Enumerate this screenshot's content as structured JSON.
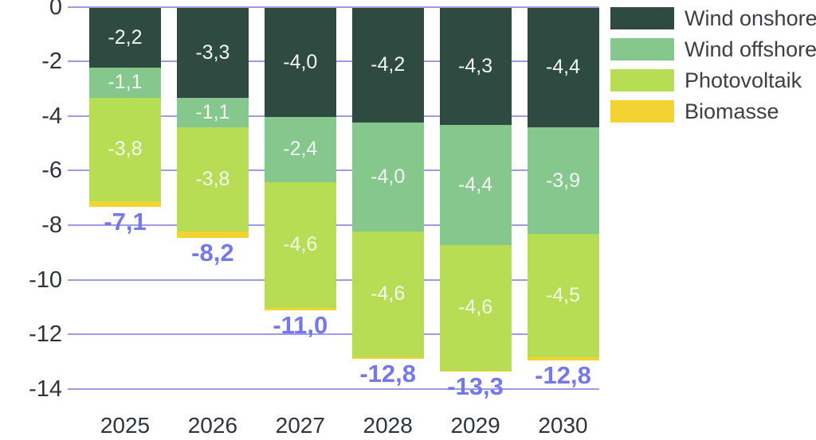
{
  "chart_data": {
    "type": "bar",
    "variant": "stacked-negative-columns",
    "title": "",
    "xlabel": "",
    "ylabel": "",
    "decimal_separator": ",",
    "categories": [
      "2025",
      "2026",
      "2027",
      "2028",
      "2029",
      "2030"
    ],
    "series": [
      {
        "name": "Wind onshore",
        "color": "#2E4A41",
        "values": [
          -2.2,
          -3.3,
          -4.0,
          -4.2,
          -4.3,
          -4.4
        ],
        "labels": [
          "-2,2",
          "-3,3",
          "-4,0",
          "-4,2",
          "-4,3",
          "-4,4"
        ]
      },
      {
        "name": "Wind offshore",
        "color": "#85C78D",
        "values": [
          -1.1,
          -1.1,
          -2.4,
          -4.0,
          -4.4,
          -3.9
        ],
        "labels": [
          "-1,1",
          "-1,1",
          "-2,4",
          "-4,0",
          "-4,4",
          "-3,9"
        ]
      },
      {
        "name": "Photovoltaik",
        "color": "#B7DD55",
        "values": [
          -3.8,
          -3.8,
          -4.6,
          -4.6,
          -4.6,
          -4.5
        ],
        "labels": [
          "-3,8",
          "-3,8",
          "-4,6",
          "-4,6",
          "-4,6",
          "-4,5"
        ]
      },
      {
        "name": "Biomasse",
        "color": "#F3D332",
        "values": [
          -0.2,
          -0.23,
          -0.1,
          -0.06,
          -0.05,
          -0.13
        ],
        "labels": [
          "",
          "",
          "",
          "",
          "",
          ""
        ],
        "note": "thin unlabeled slivers; values estimated from pixels"
      }
    ],
    "totals": {
      "values": [
        -7.1,
        -8.2,
        -11.0,
        -12.8,
        -13.3,
        -12.8
      ],
      "labels": [
        "-7,1",
        "-8,2",
        "-11,0",
        "-12,8",
        "-13,3",
        "-12,8"
      ]
    },
    "yaxis": {
      "ticks": [
        0,
        -2,
        -4,
        -6,
        -8,
        -10,
        -12,
        -14
      ],
      "tick_labels": [
        "0",
        "-2",
        "-4",
        "-6",
        "-8",
        "-10",
        "-12",
        "-14"
      ],
      "range": [
        -14,
        0
      ]
    },
    "grid": true,
    "legend": {
      "position": "top-right",
      "items": [
        "Wind onshore",
        "Wind offshore",
        "Photovoltaik",
        "Biomasse"
      ]
    }
  },
  "colors": {
    "background": "#FFFFFF",
    "gridline": "#9C9CE8",
    "axis_text": "#2F343B",
    "x_axis_text": "#2F343B",
    "segment_label_text": "#F3F6F0",
    "total_label_text": "#7478E8",
    "legend_text": "#3A4045"
  }
}
